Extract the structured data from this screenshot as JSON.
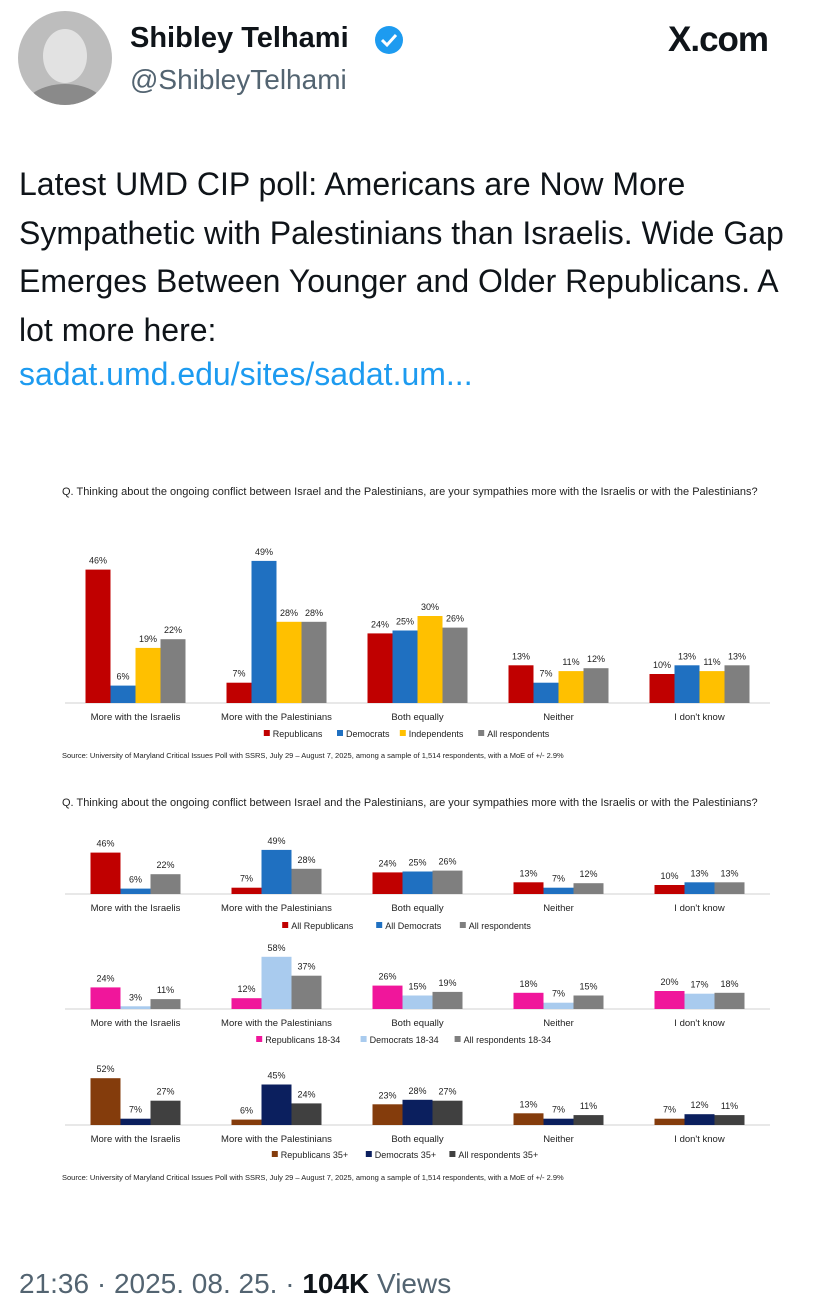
{
  "author": {
    "name": "Shibley Telhami",
    "handle": "@ShibleyTelhami"
  },
  "brand": "X.com",
  "tweet": {
    "text": "Latest UMD CIP poll: Americans are Now More Sympathetic with Palestinians than Israelis. Wide Gap Emerges Between Younger and Older Republicans. A lot more here:",
    "link": "sadat.umd.edu/sites/sadat.um..."
  },
  "footer": {
    "time": "21:36 · 2025. 08. 25. · ",
    "views_count": "104K",
    "views_label": " Views"
  },
  "chart_data": [
    {
      "type": "bar",
      "title": "Q. Thinking about the ongoing conflict between Israel and the Palestinians, are your sympathies more with the Israelis or with the Palestinians?",
      "categories": [
        "More with the Israelis",
        "More with the Palestinians",
        "Both equally",
        "Neither",
        "I don't know"
      ],
      "ylim": [
        0,
        50
      ],
      "series": [
        {
          "name": "Republicans",
          "color": "#c00000",
          "values": [
            46,
            7,
            24,
            13,
            10
          ],
          "value_labels": [
            "46%",
            "7%",
            "24%",
            "13%",
            "10%"
          ]
        },
        {
          "name": "Democrats",
          "color": "#1f70c1",
          "values": [
            6,
            49,
            25,
            7,
            13
          ],
          "value_labels": [
            "6%",
            "49%",
            "25%",
            "7%",
            "13%"
          ]
        },
        {
          "name": "Independents",
          "color": "#ffc000",
          "values": [
            19,
            28,
            30,
            11,
            11
          ],
          "value_labels": [
            "19%",
            "28%",
            "30%",
            "11%",
            "11%"
          ]
        },
        {
          "name": "All respondents",
          "color": "#7f7f7f",
          "values": [
            22,
            28,
            26,
            12,
            13
          ],
          "value_labels": [
            "22%",
            "28%",
            "26%",
            "12%",
            "13%"
          ]
        }
      ],
      "source": "Source: University of Maryland Critical Issues Poll with SSRS, July 29 – August 7, 2025, among a sample of 1,514 respondents, with a MoE of +/- 2.9%"
    },
    {
      "type": "bar",
      "title": "Q. Thinking about the ongoing conflict between Israel and the Palestinians, are your sympathies more with the Israelis or with the Palestinians?",
      "categories": [
        "More with the Israelis",
        "More with the Palestinians",
        "Both equally",
        "Neither",
        "I don't know"
      ],
      "ylim": [
        0,
        60
      ],
      "series": [
        {
          "name": "All Republicans",
          "color": "#c00000",
          "values": [
            46,
            7,
            24,
            13,
            10
          ],
          "value_labels": [
            "46%",
            "7%",
            "24%",
            "13%",
            "10%"
          ]
        },
        {
          "name": "All Democrats",
          "color": "#1f70c1",
          "values": [
            6,
            49,
            25,
            7,
            13
          ],
          "value_labels": [
            "6%",
            "49%",
            "25%",
            "7%",
            "13%"
          ]
        },
        {
          "name": "All respondents",
          "color": "#7f7f7f",
          "values": [
            22,
            28,
            26,
            12,
            13
          ],
          "value_labels": [
            "22%",
            "28%",
            "26%",
            "12%",
            "13%"
          ]
        }
      ]
    },
    {
      "type": "bar",
      "categories": [
        "More with the Israelis",
        "More with the Palestinians",
        "Both equally",
        "Neither",
        "I don't know"
      ],
      "ylim": [
        0,
        60
      ],
      "series": [
        {
          "name": "Republicans 18-34",
          "color": "#f0169b",
          "values": [
            24,
            12,
            26,
            18,
            20
          ],
          "value_labels": [
            "24%",
            "12%",
            "26%",
            "18%",
            "20%"
          ]
        },
        {
          "name": "Democrats 18-34",
          "color": "#a9cbee",
          "values": [
            3,
            58,
            15,
            7,
            17
          ],
          "value_labels": [
            "3%",
            "58%",
            "15%",
            "7%",
            "17%"
          ]
        },
        {
          "name": "All respondents 18-34",
          "color": "#7f7f7f",
          "values": [
            11,
            37,
            19,
            15,
            18
          ],
          "value_labels": [
            "11%",
            "37%",
            "19%",
            "15%",
            "18%"
          ]
        }
      ]
    },
    {
      "type": "bar",
      "categories": [
        "More with the Israelis",
        "More with the Palestinians",
        "Both equally",
        "Neither",
        "I don't know"
      ],
      "ylim": [
        0,
        60
      ],
      "series": [
        {
          "name": "Republicans 35+",
          "color": "#843c0c",
          "values": [
            52,
            6,
            23,
            13,
            7
          ],
          "value_labels": [
            "52%",
            "6%",
            "23%",
            "13%",
            "7%"
          ]
        },
        {
          "name": "Democrats 35+",
          "color": "#0b1f5e",
          "values": [
            7,
            45,
            28,
            7,
            12
          ],
          "value_labels": [
            "7%",
            "45%",
            "28%",
            "7%",
            "12%"
          ]
        },
        {
          "name": "All respondents 35+",
          "color": "#404040",
          "values": [
            27,
            24,
            27,
            11,
            11
          ],
          "value_labels": [
            "27%",
            "24%",
            "27%",
            "11%",
            "11%"
          ]
        }
      ],
      "source": "Source: University of Maryland Critical Issues Poll with SSRS, July 29 – August 7, 2025, among a sample of 1,514 respondents, with a MoE of +/- 2.9%"
    }
  ]
}
